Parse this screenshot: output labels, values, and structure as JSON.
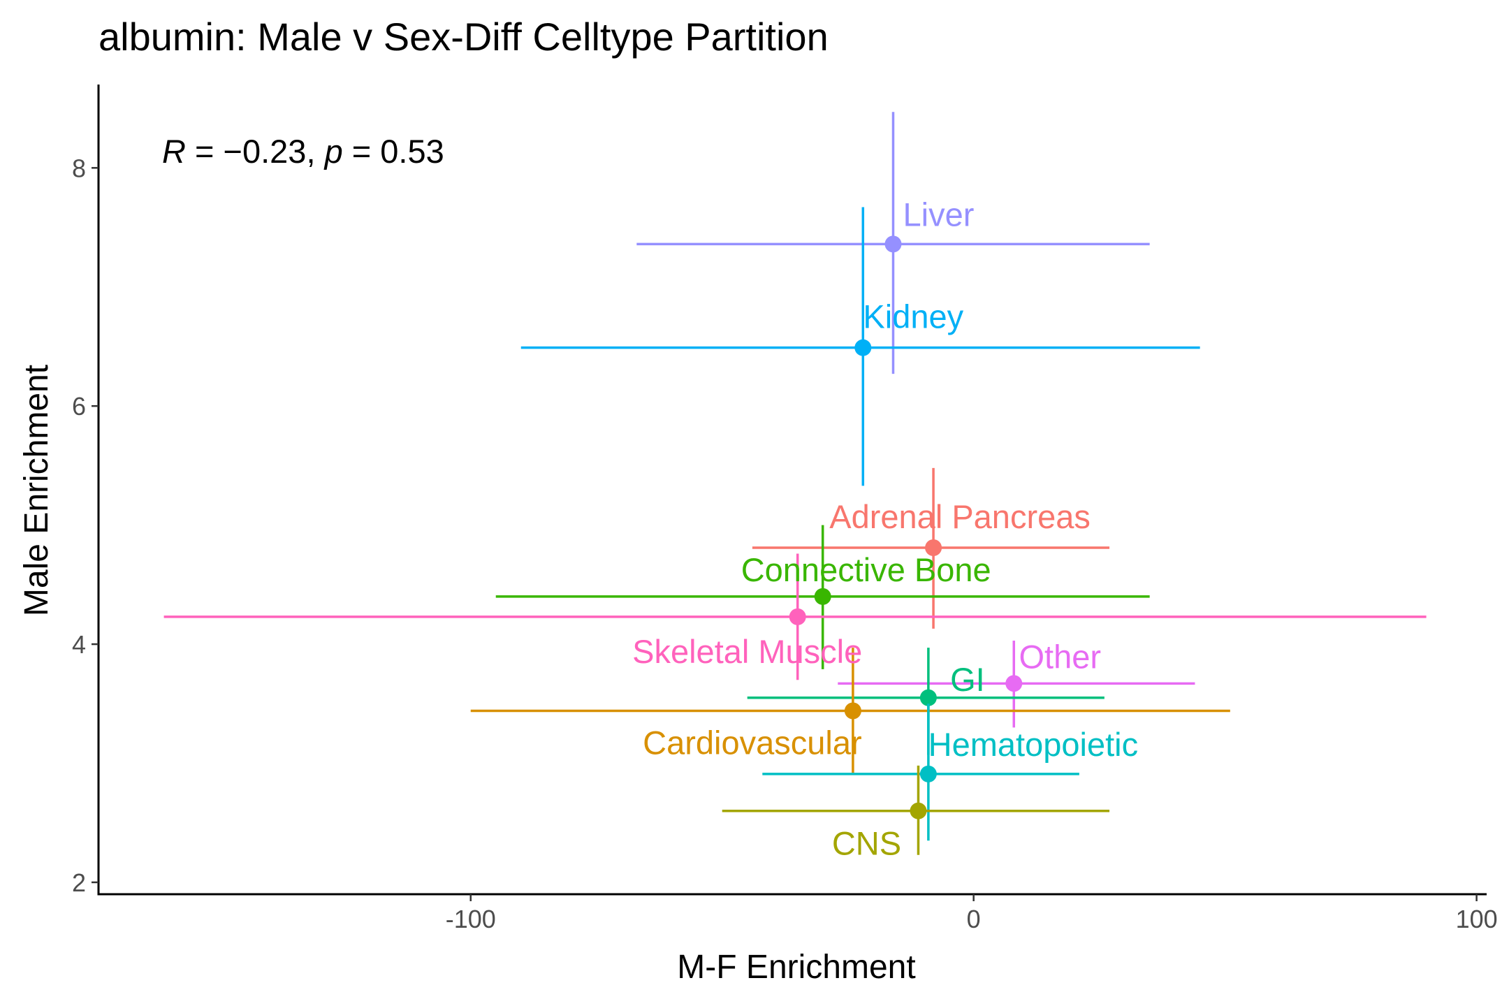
{
  "chart_data": {
    "type": "scatter",
    "title": "albumin: Male v Sex-Diff Celltype Partition",
    "xlabel": "M-F Enrichment",
    "ylabel": "Male Enrichment",
    "xlim": [
      -174,
      102
    ],
    "ylim": [
      1.9,
      8.7
    ],
    "x_ticks": [
      -100,
      0,
      100
    ],
    "x_tick_labels": [
      "-100",
      "0",
      "100"
    ],
    "y_ticks": [
      2,
      4,
      6,
      8
    ],
    "y_tick_labels": [
      "2",
      "4",
      "6",
      "8"
    ],
    "grid": false,
    "legend": "none",
    "annotation": {
      "R_symbol": "R",
      "R_text": " = −0.23, ",
      "p_symbol": "p",
      "p_text": " = 0.53"
    },
    "points": [
      {
        "label": "Liver",
        "x": -16,
        "y": 7.36,
        "xmin": -67,
        "xmax": 35,
        "ymin": 6.27,
        "ymax": 8.47,
        "color": "#9590FF"
      },
      {
        "label": "Kidney",
        "x": -22,
        "y": 6.49,
        "xmin": -90,
        "xmax": 45,
        "ymin": 5.33,
        "ymax": 7.67,
        "color": "#00B0F6"
      },
      {
        "label": "Adrenal Pancreas",
        "x": -8,
        "y": 4.81,
        "xmin": -44,
        "xmax": 27,
        "ymin": 4.13,
        "ymax": 5.48,
        "color": "#F8766D"
      },
      {
        "label": "Connective Bone",
        "x": -30,
        "y": 4.4,
        "xmin": -95,
        "xmax": 35,
        "ymin": 3.79,
        "ymax": 5.0,
        "color": "#39B600"
      },
      {
        "label": "Skeletal Muscle",
        "x": -35,
        "y": 4.23,
        "xmin": -161,
        "xmax": 90,
        "ymin": 3.7,
        "ymax": 4.76,
        "color": "#FF62BC"
      },
      {
        "label": "Other",
        "x": 8,
        "y": 3.67,
        "xmin": -27,
        "xmax": 44,
        "ymin": 3.3,
        "ymax": 4.03,
        "color": "#E76BF3"
      },
      {
        "label": "GI",
        "x": -9,
        "y": 3.55,
        "xmin": -45,
        "xmax": 26,
        "ymin": 3.07,
        "ymax": 3.97,
        "color": "#00BF7D"
      },
      {
        "label": "Cardiovascular",
        "x": -24,
        "y": 3.44,
        "xmin": -100,
        "xmax": 51,
        "ymin": 2.92,
        "ymax": 3.97,
        "color": "#D89000"
      },
      {
        "label": "Hematopoietic",
        "x": -9,
        "y": 2.91,
        "xmin": -42,
        "xmax": 21,
        "ymin": 2.35,
        "ymax": 3.5,
        "color": "#00BFC4"
      },
      {
        "label": "CNS",
        "x": -11,
        "y": 2.6,
        "xmin": -50,
        "xmax": 27,
        "ymin": 2.23,
        "ymax": 2.98,
        "color": "#A3A500"
      }
    ]
  }
}
